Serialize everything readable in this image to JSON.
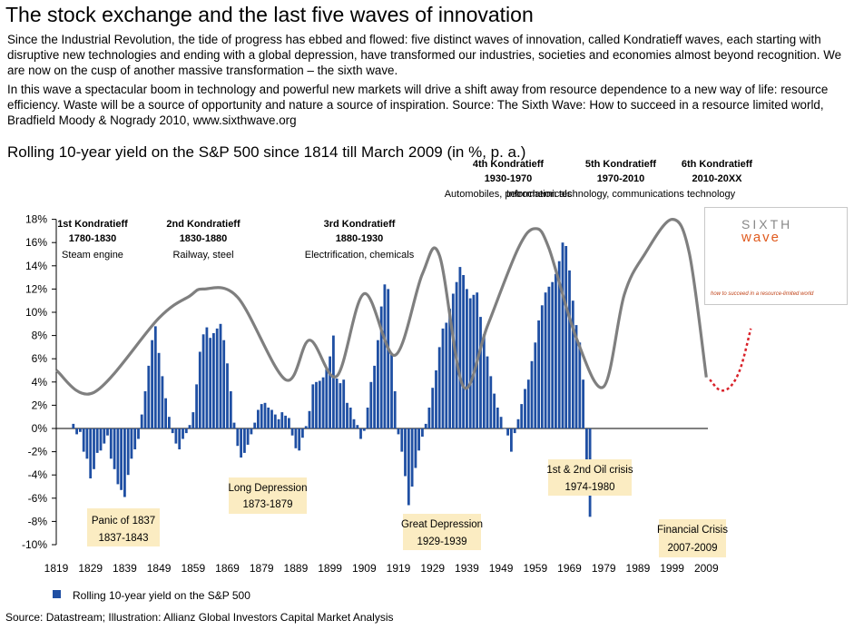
{
  "header": {
    "title": "The stock exchange and the last five waves of innovation",
    "paragraph1": "Since the Industrial Revolution, the tide of progress has ebbed and flowed: five distinct waves of innovation, called Kondratieff waves, each starting with disruptive new technologies and ending with a global depression, have transformed our industries, societies and economies almost beyond recognition.  We are now on the cusp of another massive transformation – the sixth wave.",
    "paragraph2": "In this wave a spectacular boom in technology and powerful new markets will drive a shift away from resource dependence to a new way of life: resource efficiency.  Waste will be a source of opportunity and nature a source of inspiration.  Source: The Sixth Wave: How to succeed in a resource limited world, Bradfield Moody & Nogrady 2010, www.sixthwave.org"
  },
  "logo": {
    "word1": "SIXTH",
    "word2": "wave",
    "tagline": "how to succeed in a resource-limited world"
  },
  "colors": {
    "bar": "#1f4fa3",
    "wave": "#7f7f7f",
    "forecast": "#d9222a",
    "callout": "#fbecc2"
  },
  "chart_data": {
    "type": "bar",
    "title": "Rolling 10-year yield on the S&P 500 since 1814 till March 2009 (in %, p. a.)",
    "ylim": [
      -10,
      18
    ],
    "y_ticks": [
      "18%",
      "16%",
      "14%",
      "12%",
      "10%",
      "8%",
      "6%",
      "4%",
      "2%",
      "0%",
      "-2%",
      "-4%",
      "-6%",
      "-8%",
      "-10%"
    ],
    "x_ticks": [
      "1819",
      "1829",
      "1839",
      "1849",
      "1859",
      "1869",
      "1879",
      "1889",
      "1899",
      "1909",
      "1919",
      "1929",
      "1939",
      "1949",
      "1959",
      "1969",
      "1979",
      "1989",
      "1999",
      "2009"
    ],
    "legend": "Rolling 10-year yield on the S&P 500",
    "source": "Source: Datastream; Illustration: Allianz Global Investors Capital Market Analysis",
    "series": [
      {
        "name": "Rolling 10-year yield on the S&P 500",
        "x_start": 1824,
        "x_step": 1,
        "values": [
          0.4,
          -0.5,
          -0.3,
          -2.0,
          -2.6,
          -4.3,
          -3.5,
          -2.1,
          -1.9,
          -1.3,
          -0.6,
          -2.6,
          -3.5,
          -4.8,
          -5.3,
          -5.9,
          -4.0,
          -2.6,
          -1.8,
          -0.9,
          1.2,
          3.2,
          5.4,
          7.6,
          8.8,
          6.5,
          4.5,
          2.6,
          1.0,
          -0.4,
          -1.3,
          -1.8,
          -0.9,
          -0.4,
          0.3,
          1.4,
          3.8,
          6.6,
          8.1,
          8.7,
          7.8,
          8.2,
          8.6,
          9.0,
          7.6,
          5.6,
          3.2,
          0.5,
          -1.5,
          -2.5,
          -2.1,
          -1.4,
          -0.5,
          0.5,
          1.6,
          2.1,
          2.2,
          1.8,
          1.6,
          1.2,
          0.8,
          1.4,
          1.1,
          0.9,
          -0.6,
          -1.7,
          -1.9,
          -0.8,
          0.2,
          1.5,
          3.8,
          4.0,
          4.1,
          4.4,
          5.1,
          6.2,
          8.0,
          4.3,
          3.9,
          4.2,
          2.2,
          1.8,
          0.8,
          0.3,
          -0.9,
          -0.2,
          1.8,
          4.0,
          5.4,
          7.6,
          10.5,
          12.4,
          12.0,
          6.4,
          3.2,
          -0.5,
          -2.0,
          -4.1,
          -6.6,
          -5.0,
          -3.4,
          -1.9,
          -0.7,
          0.4,
          1.8,
          3.5,
          5.0,
          7.0,
          8.6,
          9.1,
          10.3,
          11.6,
          12.6,
          13.9,
          13.2,
          12.0,
          11.2,
          11.5,
          11.7,
          9.6,
          8.1,
          6.2,
          4.5,
          3.0,
          1.8,
          1.0,
          0.0,
          -0.6,
          -2.0,
          -0.4,
          0.8,
          2.1,
          3.4,
          4.2,
          5.8,
          7.4,
          9.3,
          10.6,
          11.7,
          12.2,
          12.6,
          13.3,
          14.4,
          16.0,
          15.7,
          13.6,
          11.0,
          8.9,
          7.4,
          4.2,
          -2.8,
          -7.6
        ]
      },
      {
        "name": "",
        "type": "line",
        "x": [
          1819,
          1830,
          1849,
          1858,
          1862,
          1872,
          1886,
          1893,
          1901,
          1909,
          1918,
          1926,
          1931,
          1938,
          1945,
          1954,
          1959,
          1963,
          1971,
          1979,
          1985,
          1991,
          1999,
          2004,
          2009
        ],
        "values": [
          5.0,
          3.1,
          9.5,
          11.4,
          12.0,
          11.3,
          4.2,
          7.6,
          4.5,
          11.6,
          6.3,
          13.3,
          14.9,
          3.6,
          8.8,
          15.5,
          17.2,
          15.5,
          7.8,
          3.6,
          11.5,
          15.0,
          18.0,
          15.1,
          4.4
        ]
      },
      {
        "name": "",
        "type": "line",
        "dashed": true,
        "x": [
          2010,
          2013,
          2016,
          2019,
          2022
        ],
        "values": [
          4.2,
          3.3,
          3.6,
          5.2,
          8.6
        ]
      }
    ],
    "waves": [
      {
        "name": "1st Kondratieff",
        "years": "1780-1830",
        "theme": "Steam engine"
      },
      {
        "name": "2nd Kondratieff",
        "years": "1830-1880",
        "theme": "Railway, steel"
      },
      {
        "name": "3rd Kondratieff",
        "years": "1880-1930",
        "theme": "Electrification, chemicals"
      },
      {
        "name": "4th Kondratieff",
        "years": "1930-1970",
        "theme": "Automobiles, petrochemicals"
      },
      {
        "name": "5th Kondratieff",
        "years": "1970-2010",
        "theme": "Information technology, communications technology"
      },
      {
        "name": "6th Kondratieff",
        "years": "2010-20XX",
        "theme": ""
      }
    ],
    "events": [
      {
        "name": "Panic of 1837",
        "years": "1837-1843"
      },
      {
        "name": "Long Depression",
        "years": "1873-1879"
      },
      {
        "name": "Great Depression",
        "years": "1929-1939"
      },
      {
        "name": "1st & 2nd Oil crisis",
        "years": "1974-1980"
      },
      {
        "name": "Financial Crisis",
        "years": "2007-2009"
      }
    ]
  }
}
